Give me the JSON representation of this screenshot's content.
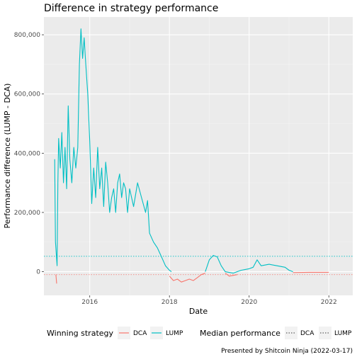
{
  "chart_data": {
    "type": "line",
    "title": "Difference in strategy performance",
    "xlabel": "Date",
    "ylabel": "Performance difference (LUMP - DCA)",
    "xlim": [
      2014.85,
      2022.6
    ],
    "ylim": [
      -80000,
      860000
    ],
    "x_ticks": [
      2016,
      2018,
      2020,
      2022
    ],
    "x_tick_labels": [
      "2016",
      "2018",
      "2020",
      "2022"
    ],
    "y_ticks": [
      0,
      200000,
      400000,
      600000,
      800000
    ],
    "y_tick_labels": [
      "0",
      "200,000",
      "400,000",
      "600,000",
      "800,000"
    ],
    "grid": true,
    "legend_position": "bottom",
    "series": [
      {
        "name": "LUMP",
        "color": "#00BFC4",
        "points": [
          [
            2015.12,
            380000
          ],
          [
            2015.14,
            100000
          ],
          [
            2015.18,
            20000
          ],
          [
            2015.2,
            300000
          ],
          [
            2015.22,
            450000
          ],
          [
            2015.26,
            350000
          ],
          [
            2015.3,
            470000
          ],
          [
            2015.34,
            300000
          ],
          [
            2015.38,
            420000
          ],
          [
            2015.42,
            280000
          ],
          [
            2015.46,
            560000
          ],
          [
            2015.5,
            380000
          ],
          [
            2015.55,
            300000
          ],
          [
            2015.6,
            420000
          ],
          [
            2015.65,
            350000
          ],
          [
            2015.7,
            420000
          ],
          [
            2015.74,
            700000
          ],
          [
            2015.78,
            820000
          ],
          [
            2015.82,
            720000
          ],
          [
            2015.86,
            790000
          ],
          [
            2015.9,
            700000
          ],
          [
            2015.95,
            600000
          ],
          [
            2016.0,
            440000
          ],
          [
            2016.05,
            230000
          ],
          [
            2016.1,
            350000
          ],
          [
            2016.15,
            250000
          ],
          [
            2016.2,
            420000
          ],
          [
            2016.25,
            280000
          ],
          [
            2016.3,
            350000
          ],
          [
            2016.35,
            220000
          ],
          [
            2016.4,
            370000
          ],
          [
            2016.45,
            300000
          ],
          [
            2016.5,
            200000
          ],
          [
            2016.55,
            250000
          ],
          [
            2016.6,
            280000
          ],
          [
            2016.65,
            200000
          ],
          [
            2016.7,
            300000
          ],
          [
            2016.75,
            330000
          ],
          [
            2016.8,
            250000
          ],
          [
            2016.85,
            300000
          ],
          [
            2016.9,
            280000
          ],
          [
            2016.95,
            200000
          ],
          [
            2017.0,
            280000
          ],
          [
            2017.1,
            220000
          ],
          [
            2017.2,
            300000
          ],
          [
            2017.3,
            250000
          ],
          [
            2017.4,
            200000
          ],
          [
            2017.45,
            240000
          ],
          [
            2017.5,
            130000
          ],
          [
            2017.6,
            100000
          ],
          [
            2017.7,
            80000
          ],
          [
            2017.8,
            50000
          ],
          [
            2017.9,
            20000
          ],
          [
            2018.0,
            5000
          ],
          [
            2018.05,
            0
          ]
        ]
      },
      {
        "name": "DCA",
        "color": "#F8766D",
        "points": [
          [
            2015.15,
            -10000
          ],
          [
            2015.17,
            -40000
          ],
          [
            2018.0,
            -15000
          ],
          [
            2018.1,
            -30000
          ],
          [
            2018.2,
            -25000
          ],
          [
            2018.3,
            -35000
          ],
          [
            2018.4,
            -30000
          ],
          [
            2018.5,
            -25000
          ],
          [
            2018.6,
            -30000
          ],
          [
            2018.7,
            -20000
          ],
          [
            2018.8,
            -10000
          ],
          [
            2018.9,
            -5000
          ]
        ]
      }
    ],
    "extra_series": [
      {
        "name": "LUMP",
        "color": "#00BFC4",
        "points": [
          [
            2018.9,
            0
          ],
          [
            2019.0,
            40000
          ],
          [
            2019.1,
            55000
          ],
          [
            2019.2,
            50000
          ],
          [
            2019.3,
            20000
          ],
          [
            2019.4,
            0
          ],
          [
            2019.6,
            -5000
          ],
          [
            2019.8,
            5000
          ],
          [
            2020.0,
            10000
          ],
          [
            2020.1,
            15000
          ],
          [
            2020.2,
            40000
          ],
          [
            2020.3,
            20000
          ],
          [
            2020.5,
            25000
          ],
          [
            2020.7,
            20000
          ],
          [
            2020.9,
            15000
          ],
          [
            2021.0,
            5000
          ],
          [
            2021.1,
            0
          ]
        ]
      },
      {
        "name": "DCA",
        "color": "#F8766D",
        "points": [
          [
            2019.4,
            -5000
          ],
          [
            2019.5,
            -15000
          ],
          [
            2019.7,
            -10000
          ],
          [
            2021.1,
            -3000
          ],
          [
            2021.5,
            -2000
          ],
          [
            2022.0,
            -2000
          ]
        ]
      }
    ],
    "median_lines": [
      {
        "name": "LUMP",
        "value": 52000,
        "color": "#00BFC4"
      },
      {
        "name": "DCA",
        "value": -10000,
        "color": "#F8766D"
      }
    ],
    "legend": {
      "winning_title": "Winning strategy",
      "winning_items": [
        "DCA",
        "LUMP"
      ],
      "median_title": "Median performance",
      "median_items": [
        "DCA",
        "LUMP"
      ]
    },
    "caption": "Presented by Shitcoin Ninja (2022-03-17)"
  }
}
